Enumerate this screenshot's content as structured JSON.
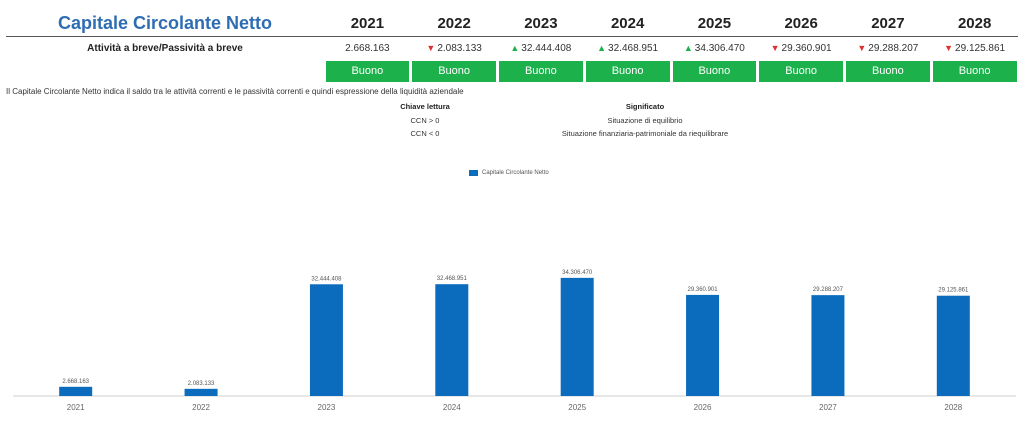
{
  "header": {
    "title": "Capitale Circolante Netto",
    "row_label": "Attività a breve/Passività a breve",
    "years": [
      "2021",
      "2022",
      "2023",
      "2024",
      "2025",
      "2026",
      "2027",
      "2028"
    ],
    "values": [
      {
        "text": "2.668.163",
        "trend": "none"
      },
      {
        "text": "2.083.133",
        "trend": "down"
      },
      {
        "text": "32.444.408",
        "trend": "up"
      },
      {
        "text": "32.468.951",
        "trend": "up"
      },
      {
        "text": "34.306.470",
        "trend": "up"
      },
      {
        "text": "29.360.901",
        "trend": "down"
      },
      {
        "text": "29.288.207",
        "trend": "down"
      },
      {
        "text": "29.125.861",
        "trend": "down"
      }
    ],
    "ratings": [
      "Buono",
      "Buono",
      "Buono",
      "Buono",
      "Buono",
      "Buono",
      "Buono",
      "Buono"
    ]
  },
  "description": "Il Capitale Circolante Netto indica il saldo tra le attività correnti e le passività correnti e quindi espressione della liquidità aziendale",
  "key_table": {
    "col1_header": "Chiave lettura",
    "col2_header": "Significato",
    "rows": [
      {
        "key": "CCN > 0",
        "meaning": "Situazione di equilibrio"
      },
      {
        "key": "CCN < 0",
        "meaning": "Situazione finanziaria-patrimoniale da riequilibrare"
      }
    ]
  },
  "colors": {
    "title": "#2e6db4",
    "bar": "#0b6bbd",
    "badge": "#1db14b",
    "up": "#1db14b",
    "down": "#e03131",
    "axis_text": "#666666"
  },
  "arrows": {
    "up": "▲",
    "down": "▼"
  },
  "chart_data": {
    "type": "bar",
    "legend": "Capitale Circolante Netto",
    "legend_position": "top-center",
    "categories": [
      "2021",
      "2022",
      "2023",
      "2024",
      "2025",
      "2026",
      "2027",
      "2028"
    ],
    "values": [
      2668163,
      2083133,
      32444408,
      32468951,
      34306470,
      29360901,
      29288207,
      29125861
    ],
    "data_labels": [
      "2.668.163",
      "2.083.133",
      "32.444.408",
      "32.468.951",
      "34.306.470",
      "29.360.901",
      "29.288.207",
      "29.125.861"
    ],
    "ylim": [
      0,
      115000000
    ],
    "grid": false
  }
}
